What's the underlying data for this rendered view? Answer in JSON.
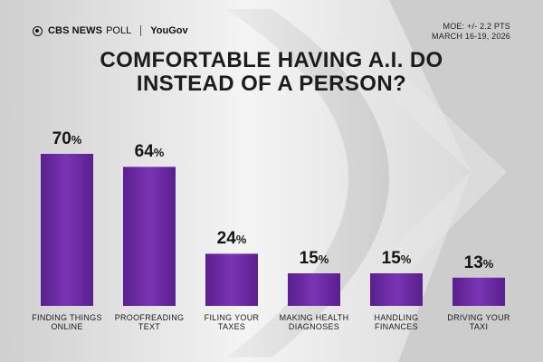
{
  "header": {
    "brand_primary": "CBS NEWS",
    "brand_secondary": "POLL",
    "partner": "YouGov",
    "moe": "MOE: +/- 2.2 PTS",
    "dates": "MARCH 16-19, 2026"
  },
  "colors": {
    "bar": "#7a34b4",
    "bar_dark": "#5a1f8e",
    "background": "#dcdcdc"
  },
  "chart_data": {
    "type": "bar",
    "title": "COMFORTABLE HAVING A.I. DO INSTEAD OF A PERSON?",
    "title_lines": [
      "COMFORTABLE HAVING A.I. DO",
      "INSTEAD OF A PERSON?"
    ],
    "categories": [
      [
        "FINDING THINGS",
        "ONLINE"
      ],
      [
        "PROOFREADING",
        "TEXT"
      ],
      [
        "FILING YOUR",
        "TAXES"
      ],
      [
        "MAKING HEALTH",
        "DIAGNOSES"
      ],
      [
        "HANDLING",
        "FINANCES"
      ],
      [
        "DRIVING YOUR",
        "TAXI"
      ]
    ],
    "values": [
      70,
      64,
      24,
      15,
      15,
      13
    ],
    "value_suffix": "%",
    "xlabel": "",
    "ylabel": "",
    "ylim": [
      0,
      100
    ],
    "grid": false,
    "legend": "none"
  }
}
